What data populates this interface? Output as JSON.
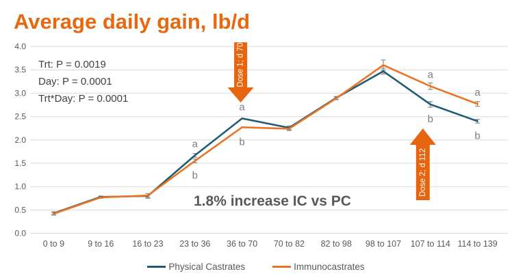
{
  "title": "Average daily gain, lb/d",
  "stats": [
    "Trt: P = 0.0019",
    "Day: P = 0.0001",
    "Trt*Day: P = 0.0001"
  ],
  "center_annotation": "1.8% increase IC vs PC",
  "colors": {
    "title": "#e8670f",
    "pc_line": "#1f5c73",
    "ic_line": "#ea7423",
    "arrow": "#e8650f",
    "grid": "#d9d9d9",
    "axis_text": "#595959",
    "stats_text": "#404040",
    "letter_text": "#7f7f7f",
    "error_bar": "#8c8c8c"
  },
  "chart_data": {
    "type": "line",
    "title": "Average daily gain, lb/d",
    "xlabel": "",
    "ylabel": "",
    "ylim": [
      0.0,
      4.0
    ],
    "ytick_step": 0.5,
    "grid": true,
    "legend_position": "bottom",
    "categories": [
      "0 to 9",
      "9 to 16",
      "16 to 23",
      "23 to 36",
      "36 to 70",
      "70 to 82",
      "82 to 98",
      "98 to 107",
      "107 to 114",
      "114 to 139"
    ],
    "series": [
      {
        "name": "Physical Castrates",
        "color": "#1f5c73",
        "values": [
          0.43,
          0.78,
          0.8,
          1.67,
          2.46,
          2.26,
          2.9,
          3.47,
          2.76,
          2.4
        ],
        "errors": [
          0.03,
          0.02,
          0.05,
          0.04,
          0,
          0.04,
          0.03,
          0.06,
          0.06,
          0.04
        ]
      },
      {
        "name": "Immunocastrates",
        "color": "#ea7423",
        "values": [
          0.42,
          0.77,
          0.81,
          1.55,
          2.27,
          2.24,
          2.89,
          3.6,
          3.15,
          2.77
        ],
        "errors": [
          0.03,
          0.02,
          0.04,
          0.04,
          0,
          0.04,
          0.03,
          0.11,
          0.07,
          0.05
        ]
      }
    ],
    "sig_letters": [
      {
        "category_index": 3,
        "letter": "a",
        "series": 0,
        "position": "above"
      },
      {
        "category_index": 3,
        "letter": "b",
        "series": 1,
        "position": "below"
      },
      {
        "category_index": 4,
        "letter": "a",
        "series": 0,
        "position": "above"
      },
      {
        "category_index": 4,
        "letter": "b",
        "series": 1,
        "position": "below"
      },
      {
        "category_index": 8,
        "letter": "a",
        "series": 1,
        "position": "above"
      },
      {
        "category_index": 8,
        "letter": "b",
        "series": 0,
        "position": "below"
      },
      {
        "category_index": 9,
        "letter": "a",
        "series": 1,
        "position": "above"
      },
      {
        "category_index": 9,
        "letter": "b",
        "series": 0,
        "position": "below"
      }
    ],
    "arrows": [
      {
        "label": "Dose 1; d 70",
        "direction": "down",
        "category_index": 4
      },
      {
        "label": "Dose 2; d 112",
        "direction": "up",
        "category_index": 8
      }
    ]
  }
}
